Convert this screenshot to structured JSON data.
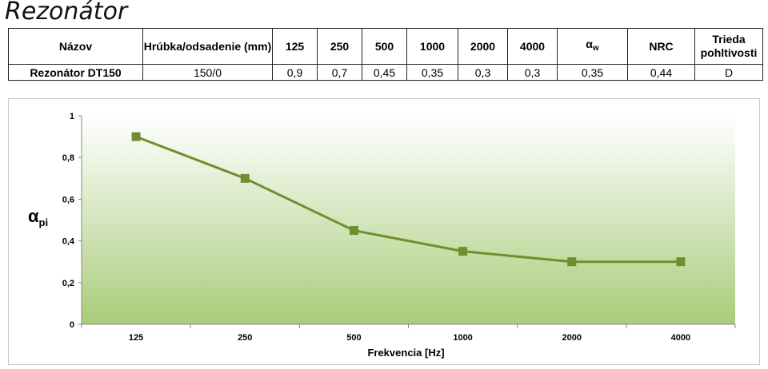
{
  "page": {
    "title": "Rezonátor"
  },
  "table": {
    "headers": {
      "name": "Názov",
      "thickness": "Hrúbka/odsadenie (mm)",
      "f125": "125",
      "f250": "250",
      "f500": "500",
      "f1000": "1000",
      "f2000": "2000",
      "f4000": "4000",
      "alpha_w_symbol": "α",
      "alpha_w_sub": "w",
      "nrc": "NRC",
      "class": "Trieda pohltivosti"
    },
    "row": {
      "name": "Rezonátor  DT150",
      "thickness": "150/0",
      "f125": "0,9",
      "f250": "0,7",
      "f500": "0,45",
      "f1000": "0,35",
      "f2000": "0,3",
      "f4000": "0,3",
      "alpha_w": "0,35",
      "nrc": "0,44",
      "class": "D"
    }
  },
  "chart_data": {
    "type": "line",
    "categories": [
      "125",
      "250",
      "500",
      "1000",
      "2000",
      "4000"
    ],
    "series": [
      {
        "values": [
          0.9,
          0.7,
          0.45,
          0.35,
          0.3,
          0.3
        ],
        "color": "#6e8f2e"
      }
    ],
    "title": "",
    "xlabel": "Frekvencia [Hz]",
    "ylabel_symbol": "α",
    "ylabel_sub": "pi",
    "ylim": [
      0,
      1
    ],
    "yticks": [
      0,
      0.2,
      0.4,
      0.6,
      0.8,
      1
    ],
    "ytick_labels": [
      "0",
      "0,2",
      "0,4",
      "0,6",
      "0,8",
      "1"
    ],
    "grid": false,
    "legend": "none",
    "marker": "square",
    "background_gradient": [
      "#ffffff",
      "#a9cc7a"
    ]
  }
}
